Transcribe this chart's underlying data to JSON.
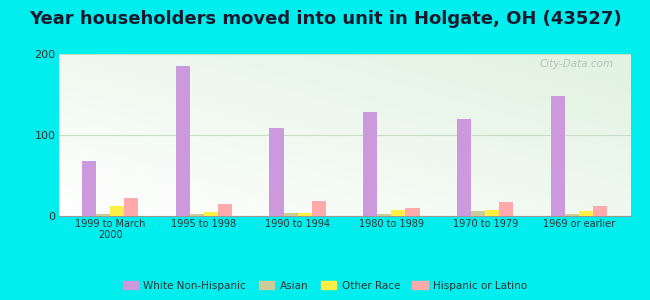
{
  "title": "Year householders moved into unit in Holgate, OH (43527)",
  "categories": [
    "1999 to March\n2000",
    "1995 to 1998",
    "1990 to 1994",
    "1980 to 1989",
    "1970 to 1979",
    "1969 or earlier"
  ],
  "series": {
    "White Non-Hispanic": [
      68,
      185,
      109,
      128,
      120,
      148
    ],
    "Asian": [
      2,
      3,
      4,
      2,
      6,
      2
    ],
    "Other Race": [
      12,
      5,
      4,
      8,
      8,
      6
    ],
    "Hispanic or Latino": [
      22,
      15,
      19,
      10,
      17,
      12
    ]
  },
  "colors": {
    "White Non-Hispanic": "#cc99dd",
    "Asian": "#cccc99",
    "Other Race": "#ffee44",
    "Hispanic or Latino": "#ffaaaa"
  },
  "ylim": [
    0,
    200
  ],
  "yticks": [
    0,
    100,
    200
  ],
  "bar_width": 0.15,
  "background_outer": "#00eeee",
  "grid_color": "#c8ddc8",
  "title_fontsize": 13,
  "watermark": "City-Data.com"
}
